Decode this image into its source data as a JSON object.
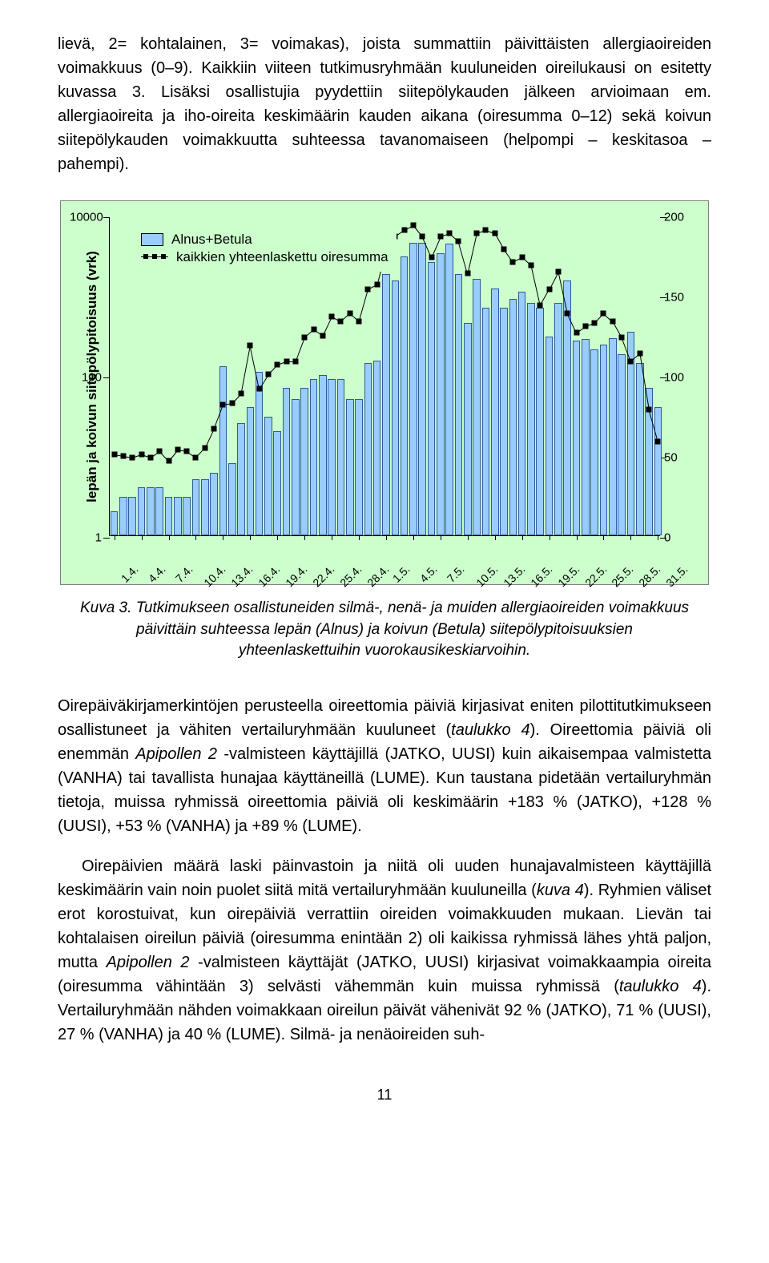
{
  "top_paragraph": "lievä, 2= kohtalainen, 3= voimakas), joista summattiin päivittäisten allergiaoireiden voimakkuus (0–9). Kaikkiin viiteen tutkimusryhmään kuuluneiden oireilukausi on esitetty kuvassa 3. Lisäksi osallistujia pyydettiin siitepölykauden jälkeen arvioimaan em. allergiaoireita ja iho-oireita keskimäärin kauden aikana (oiresumma 0–12) sekä koivun siitepölykauden voimakkuutta suhteessa tavanomaiseen (helpompi – keskitasoa – pahempi).",
  "chart": {
    "type": "combo-bar-line",
    "background_color": "#ccffcc",
    "bar_color": "#99ccff",
    "bar_border_color": "#2e5c99",
    "marker_color": "#000000",
    "line_color": "#000000",
    "left_axis": {
      "label": "lepän ja koivun siitepölypitoisuus (vrk)",
      "scale": "log",
      "ticks": [
        1,
        100,
        10000
      ],
      "tick_labels": [
        "1",
        "100",
        "10000"
      ]
    },
    "right_axis": {
      "scale": "linear",
      "min": 0,
      "max": 200,
      "ticks": [
        0,
        50,
        100,
        150,
        200
      ],
      "tick_labels": [
        "0",
        "50",
        "100",
        "150",
        "200"
      ]
    },
    "legend": {
      "series1": "Alnus+Betula",
      "series2": "kaikkien yhteenlaskettu oiresumma"
    },
    "x_labels": [
      "1.4.",
      "4.4.",
      "7.4.",
      "10.4.",
      "13.4.",
      "16.4.",
      "19.4.",
      "22.4.",
      "25.4.",
      "28.4.",
      "1.5.",
      "4.5.",
      "7.5.",
      "10.5.",
      "13.5.",
      "16.5.",
      "19.5.",
      "22.5.",
      "25.5.",
      "28.5.",
      "31.5."
    ],
    "bars": [
      2,
      3,
      3,
      4,
      4,
      4,
      3,
      3,
      3,
      5,
      5,
      6,
      130,
      8,
      25,
      40,
      110,
      30,
      20,
      70,
      50,
      70,
      90,
      100,
      90,
      90,
      50,
      50,
      140,
      150,
      1800,
      1500,
      3000,
      4500,
      4500,
      2600,
      3300,
      4400,
      1800,
      450,
      1600,
      700,
      1200,
      700,
      900,
      1100,
      800,
      700,
      300,
      800,
      1500,
      270,
      280,
      210,
      240,
      290,
      180,
      350,
      140,
      70,
      40
    ],
    "line": [
      52,
      51,
      50,
      52,
      50,
      54,
      48,
      55,
      54,
      50,
      56,
      68,
      83,
      84,
      90,
      120,
      93,
      102,
      108,
      110,
      110,
      125,
      130,
      126,
      138,
      135,
      140,
      135,
      155,
      158,
      180,
      188,
      192,
      195,
      188,
      175,
      188,
      190,
      185,
      165,
      190,
      192,
      190,
      180,
      172,
      175,
      170,
      145,
      155,
      166,
      140,
      128,
      132,
      134,
      140,
      135,
      125,
      110,
      115,
      80,
      60
    ],
    "x_label_fontsize": 14,
    "y_label_fontsize": 15,
    "axis_label_fontsize": 17,
    "legend_fontsize": 17
  },
  "caption_lead": "Kuva 3. ",
  "caption": "Tutkimukseen osallistuneiden silmä-, nenä- ja muiden allergiaoireiden voimakkuus päivittäin suhteessa lepän (Alnus) ja koivun (Betula) siitepölypitoisuuksien yhteenlaskettuihin vuorokausikeskiarvoihin.",
  "para2": "Oirepäiväkirjamerkintöjen perusteella oireettomia päiviä kirjasivat eniten pilottitutkimukseen osallistuneet ja vähiten vertailuryhmään kuuluneet (",
  "para2_i1": "taulukko 4",
  "para2_b": "). Oireettomia päiviä oli enemmän ",
  "para2_i2": "Apipollen 2",
  "para2_c": " -valmisteen käyttäjillä (JATKO, UUSI) kuin aikaisempaa valmistetta (VANHA) tai tavallista hunajaa käyttäneillä (LUME). Kun taustana pidetään vertailuryhmän tietoja, muissa ryhmissä oireettomia päiviä oli keskimäärin +183 % (JATKO), +128 % (UUSI), +53 % (VANHA) ja +89 % (LUME).",
  "para3": "Oirepäivien määrä laski päinvastoin ja niitä oli uuden hunajavalmisteen käyttäjillä keskimäärin vain noin puolet siitä mitä vertailuryhmään kuuluneilla (",
  "para3_i1": "kuva 4",
  "para3_b": "). Ryhmien väliset erot korostuivat, kun oirepäiviä verrattiin oireiden voimakkuuden mukaan. Lievän tai kohtalaisen oireilun päiviä (oiresumma enintään 2) oli kaikissa ryhmissä lähes yhtä paljon, mutta ",
  "para3_i2": "Apipollen 2",
  "para3_c": " -valmisteen käyttäjät (JATKO, UUSI) kirjasivat voimakkaampia oireita (oiresumma vähintään 3) selvästi vähemmän kuin muissa ryhmissä (",
  "para3_i3": "taulukko 4",
  "para3_d": "). Vertailuryhmään nähden voimakkaan oireilun päivät vähenivät 92 % (JATKO), 71 % (UUSI), 27 % (VANHA) ja 40 % (LUME). Silmä- ja nenäoireiden suh-",
  "pagenum": "11"
}
